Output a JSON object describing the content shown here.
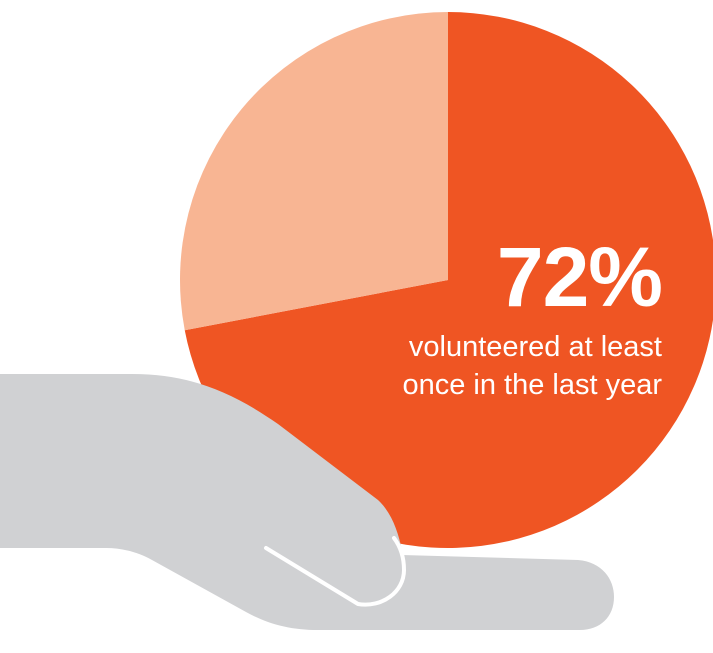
{
  "chart_data": {
    "type": "pie",
    "slices": [
      {
        "value": 72,
        "color": "#ef5523"
      },
      {
        "value": 28,
        "color": "#f8b593"
      }
    ],
    "stat_label": "72%",
    "caption_lines": [
      "volunteered at least",
      "once in the last year"
    ]
  },
  "colors": {
    "hand": "#d0d1d3",
    "hand_outline": "#ffffff",
    "text": "#ffffff"
  },
  "icons": {
    "hand": "open-hand-icon"
  }
}
